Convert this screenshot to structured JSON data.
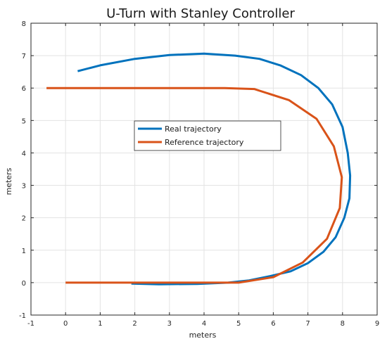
{
  "chart_data": {
    "type": "line",
    "title": "U-Turn with Stanley Controller",
    "xlabel": "meters",
    "ylabel": "meters",
    "xlim": [
      -1,
      9
    ],
    "ylim": [
      -1,
      8
    ],
    "xticks": [
      -1,
      0,
      1,
      2,
      3,
      4,
      5,
      6,
      7,
      8,
      9
    ],
    "yticks": [
      -1,
      0,
      1,
      2,
      3,
      4,
      5,
      6,
      7,
      8
    ],
    "grid": true,
    "legend_position": "center",
    "series": [
      {
        "name": "Real trajectory",
        "color": "#0072BD",
        "x": [
          0.35,
          1.0,
          2.0,
          3.0,
          4.0,
          4.9,
          5.6,
          6.2,
          6.8,
          7.3,
          7.7,
          8.0,
          8.15,
          8.22,
          8.2,
          8.05,
          7.8,
          7.45,
          7.0,
          6.5,
          5.9,
          5.3,
          4.7,
          3.8,
          2.7,
          1.9
        ],
        "y": [
          6.52,
          6.7,
          6.9,
          7.02,
          7.06,
          7.0,
          6.9,
          6.7,
          6.4,
          6.0,
          5.5,
          4.8,
          4.0,
          3.3,
          2.6,
          2.0,
          1.4,
          0.95,
          0.6,
          0.35,
          0.2,
          0.07,
          0.0,
          -0.04,
          -0.05,
          -0.03
        ]
      },
      {
        "name": "Reference trajectory",
        "color": "#D95319",
        "x": [
          -0.55,
          4.6,
          5.45,
          6.45,
          7.25,
          7.75,
          7.98,
          7.92,
          7.55,
          6.85,
          6.0,
          5.0,
          4.2,
          0.0
        ],
        "y": [
          6.0,
          6.0,
          5.97,
          5.63,
          5.05,
          4.2,
          3.25,
          2.3,
          1.35,
          0.62,
          0.17,
          0.0,
          0.0,
          0.0
        ]
      }
    ]
  }
}
